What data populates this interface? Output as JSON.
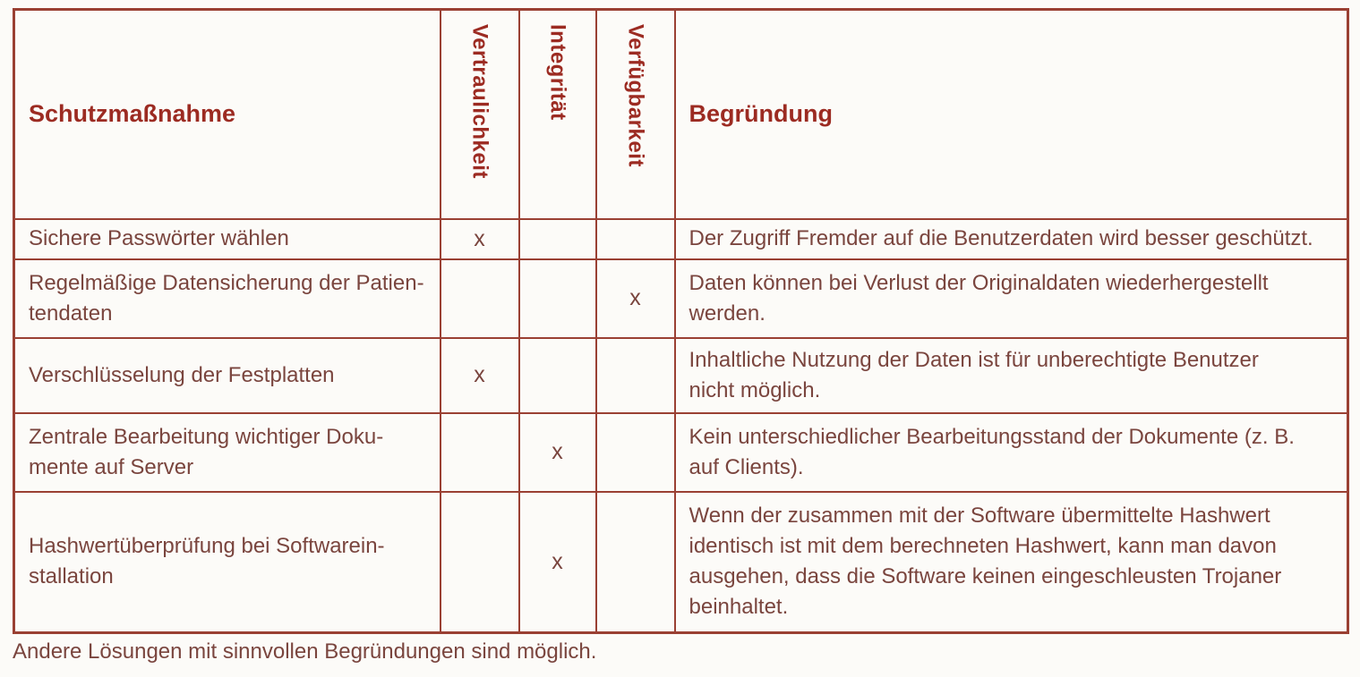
{
  "colors": {
    "border": "#9a4033",
    "header_text": "#9c2b22",
    "body_text": "#7a453e",
    "background": "#fcfbf8"
  },
  "table": {
    "headers": {
      "measure": "Schutzmaßnahme",
      "vertraulichkeit": "Vertraulichkeit",
      "integritaet": "Integrität",
      "verfuegbarkeit": "Verfügbarkeit",
      "begruendung": "Begründung"
    },
    "rows": [
      {
        "measure": "Sichere Passwörter wählen",
        "vertraulichkeit": "x",
        "integritaet": "",
        "verfuegbarkeit": "",
        "begruendung": "Der Zugriff Fremder auf die Benutzerdaten wird besser geschützt."
      },
      {
        "measure": "Regelmäßige Datensicherung der Patien-\ntendaten",
        "vertraulichkeit": "",
        "integritaet": "",
        "verfuegbarkeit": "x",
        "begruendung": "Daten können bei Verlust der Originaldaten wiederhergestellt\nwerden."
      },
      {
        "measure": "Verschlüsselung der Festplatten",
        "vertraulichkeit": "x",
        "integritaet": "",
        "verfuegbarkeit": "",
        "begruendung": "Inhaltliche Nutzung der Daten ist für unberechtigte Benutzer\nnicht möglich."
      },
      {
        "measure": "Zentrale Bearbeitung wichtiger Doku-\nmente auf Server",
        "vertraulichkeit": "",
        "integritaet": "x",
        "verfuegbarkeit": "",
        "begruendung": "Kein unterschiedlicher Bearbeitungsstand der Dokumente (z. B.\nauf Clients)."
      },
      {
        "measure": "Hashwertüberprüfung bei Softwarein-\nstallation",
        "vertraulichkeit": "",
        "integritaet": "x",
        "verfuegbarkeit": "",
        "begruendung": "Wenn der zusammen mit der Software übermittelte Hashwert\nidentisch ist mit dem berechneten Hashwert, kann man davon\nausgehen, dass die Software keinen eingeschleusten Trojaner\nbeinhaltet."
      }
    ]
  },
  "footer_note": "Andere Lösungen mit sinnvollen Begründungen sind möglich."
}
